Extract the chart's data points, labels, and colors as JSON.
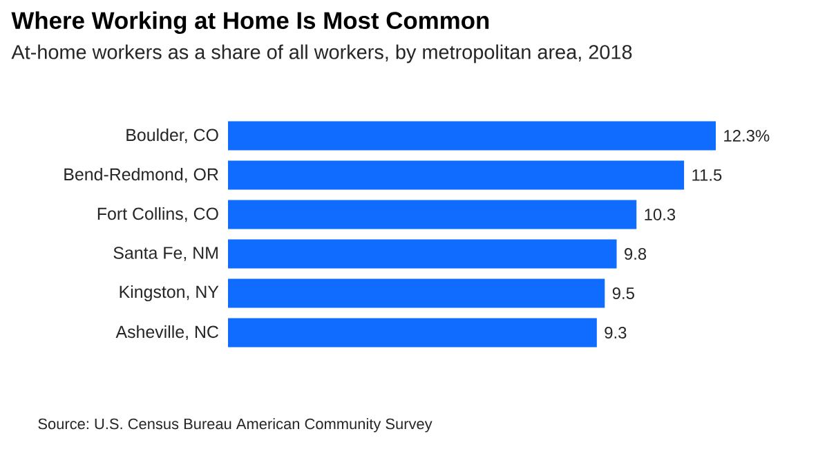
{
  "chart_data": {
    "type": "bar",
    "orientation": "horizontal",
    "title": "Where Working at Home Is Most Common",
    "subtitle": "At-home workers as a share of all workers, by metropolitan area, 2018",
    "categories": [
      "Boulder, CO",
      "Bend-Redmond, OR",
      "Fort Collins, CO",
      "Santa Fe, NM",
      "Kingston, NY",
      "Asheville, NC"
    ],
    "values": [
      12.3,
      11.5,
      10.3,
      9.8,
      9.5,
      9.3
    ],
    "value_labels": [
      "12.3%",
      "11.5",
      "10.3",
      "9.8",
      "9.5",
      "9.3"
    ],
    "color": "#0f6cff",
    "tick_labels": "y",
    "annotations": [
      "Source: U.S. Census Bureau American Community Survey"
    ]
  }
}
